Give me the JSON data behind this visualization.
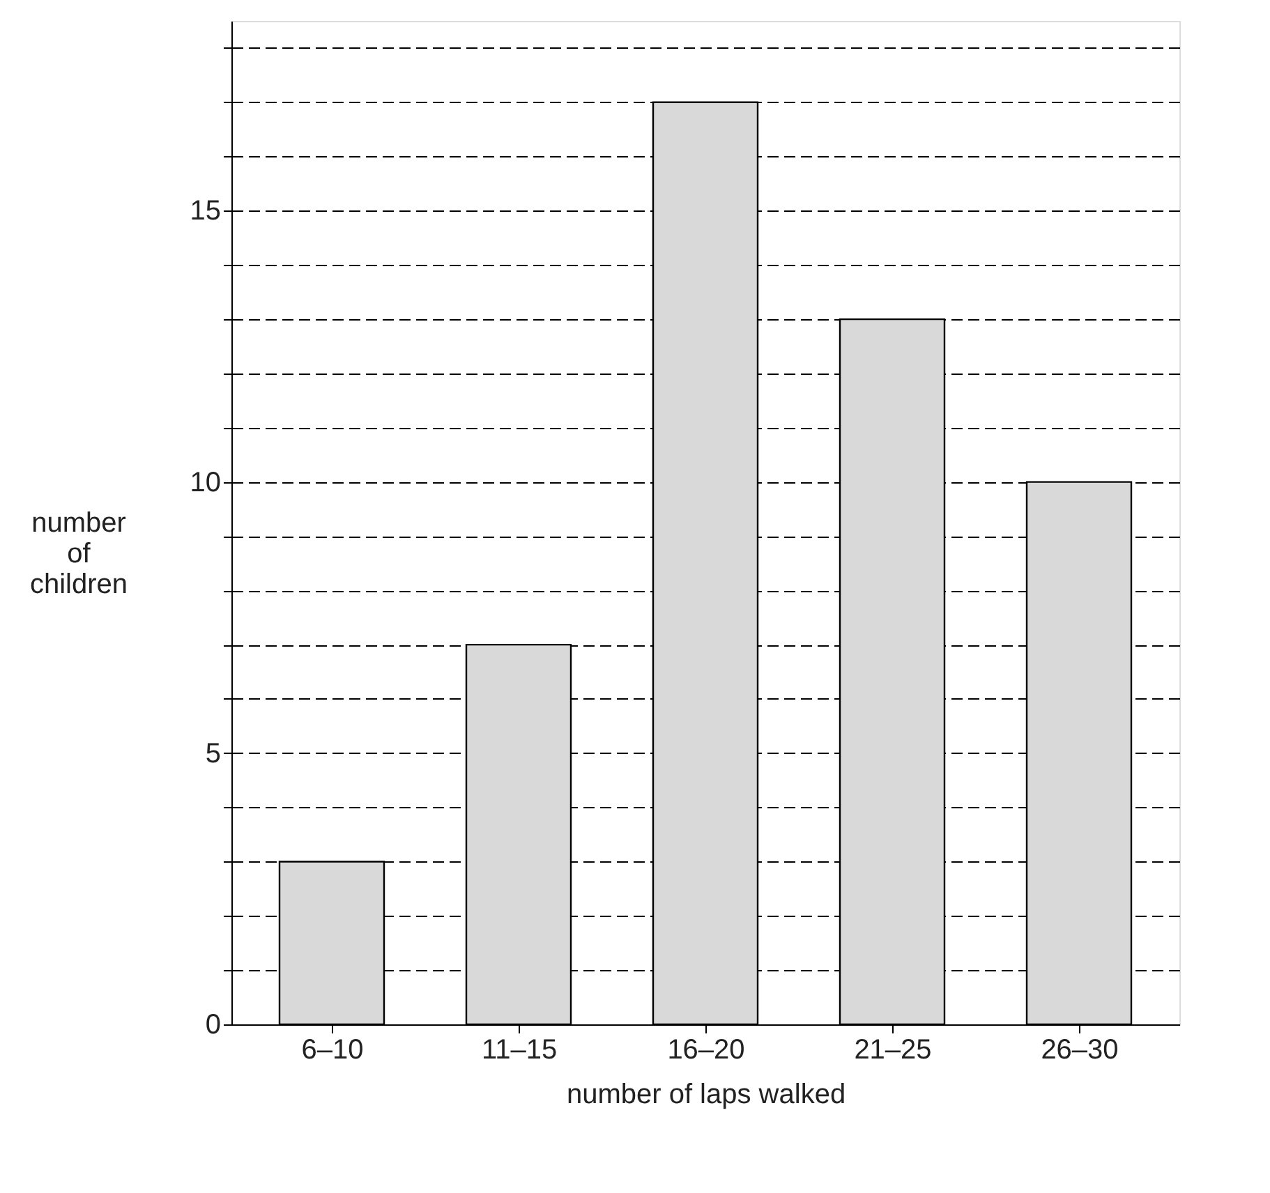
{
  "chart_data": {
    "type": "bar",
    "xlabel": "number of laps walked",
    "ylabel": "number\nof\nchildren",
    "categories": [
      "6–10",
      "11–15",
      "16–20",
      "21–25",
      "26–30"
    ],
    "values": [
      3,
      7,
      17,
      13,
      10
    ],
    "color": "#d9d9d9",
    "ylim": [
      0,
      18.5
    ],
    "yticks": [
      0,
      {
        "value": 1,
        "label": null
      },
      {
        "value": 2,
        "label": null
      },
      {
        "value": 3,
        "label": null
      },
      {
        "value": 4,
        "label": null
      },
      5,
      {
        "value": 6,
        "label": null
      },
      {
        "value": 7,
        "label": null
      },
      {
        "value": 8,
        "label": null
      },
      {
        "value": 9,
        "label": null
      },
      10,
      {
        "value": 11,
        "label": null
      },
      {
        "value": 12,
        "label": null
      },
      {
        "value": 13,
        "label": null
      },
      {
        "value": 14,
        "label": null
      },
      15,
      {
        "value": 16,
        "label": null
      },
      {
        "value": 17,
        "label": null
      },
      {
        "value": 18,
        "label": null
      }
    ],
    "grid": "y"
  }
}
